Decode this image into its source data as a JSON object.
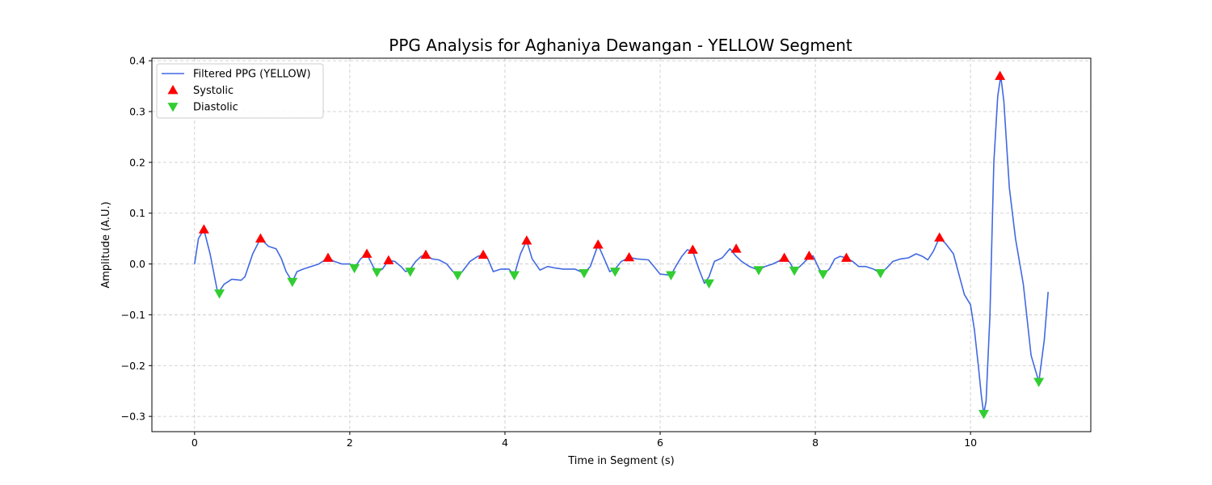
{
  "chart_data": {
    "type": "line",
    "title": "PPG Analysis for Aghaniya Dewangan - YELLOW Segment",
    "xlabel": "Time in Segment (s)",
    "ylabel": "Amplitude (A.U.)",
    "xlim": [
      -0.55,
      11.55
    ],
    "ylim": [
      -0.33,
      0.405
    ],
    "xticks": [
      0,
      2,
      4,
      6,
      8,
      10
    ],
    "yticks": [
      -0.3,
      -0.2,
      -0.1,
      0.0,
      0.1,
      0.2,
      0.3,
      0.4
    ],
    "xtick_labels": [
      "0",
      "2",
      "4",
      "6",
      "8",
      "10"
    ],
    "ytick_labels": [
      "−0.3",
      "−0.2",
      "−0.1",
      "0.0",
      "0.1",
      "0.2",
      "0.3",
      "0.4"
    ],
    "grid": true,
    "legend_position": "top-left",
    "series": [
      {
        "name": "Filtered PPG (YELLOW)",
        "kind": "line",
        "color": "#4169e1",
        "x": [
          0.0,
          0.05,
          0.12,
          0.2,
          0.3,
          0.38,
          0.48,
          0.6,
          0.65,
          0.75,
          0.85,
          0.95,
          1.05,
          1.12,
          1.18,
          1.26,
          1.32,
          1.4,
          1.5,
          1.6,
          1.72,
          1.8,
          1.9,
          2.0,
          2.06,
          2.14,
          2.22,
          2.3,
          2.35,
          2.42,
          2.5,
          2.58,
          2.66,
          2.72,
          2.78,
          2.85,
          2.92,
          2.98,
          3.06,
          3.15,
          3.25,
          3.33,
          3.39,
          3.45,
          3.55,
          3.65,
          3.72,
          3.78,
          3.85,
          3.95,
          4.05,
          4.12,
          4.2,
          4.28,
          4.35,
          4.45,
          4.55,
          4.65,
          4.75,
          4.9,
          5.02,
          5.1,
          5.2,
          5.28,
          5.35,
          5.42,
          5.5,
          5.6,
          5.7,
          5.85,
          6.0,
          6.14,
          6.2,
          6.28,
          6.35,
          6.42,
          6.5,
          6.57,
          6.63,
          6.7,
          6.8,
          6.9,
          6.98,
          7.05,
          7.15,
          7.27,
          7.35,
          7.45,
          7.52,
          7.6,
          7.67,
          7.73,
          7.8,
          7.9,
          7.97,
          8.05,
          8.1,
          8.18,
          8.25,
          8.32,
          8.4,
          8.48,
          8.56,
          8.65,
          8.75,
          8.84,
          8.92,
          9.0,
          9.1,
          9.2,
          9.3,
          9.38,
          9.45,
          9.52,
          9.6,
          9.68,
          9.78,
          9.85,
          9.92,
          10.0,
          10.05,
          10.1,
          10.14,
          10.17,
          10.2,
          10.25,
          10.3,
          10.35,
          10.39,
          10.43,
          10.5,
          10.58,
          10.68,
          10.78,
          10.88,
          10.95,
          11.0
        ],
        "y": [
          0.0,
          0.05,
          0.068,
          0.02,
          -0.058,
          -0.04,
          -0.03,
          -0.032,
          -0.025,
          0.02,
          0.05,
          0.035,
          0.03,
          0.01,
          -0.015,
          -0.035,
          -0.015,
          -0.01,
          -0.005,
          0.0,
          0.012,
          0.005,
          0.0,
          0.0,
          -0.008,
          0.01,
          0.02,
          -0.005,
          -0.016,
          -0.01,
          0.007,
          0.005,
          -0.005,
          -0.015,
          -0.01,
          0.005,
          0.015,
          0.018,
          0.01,
          0.008,
          0.0,
          -0.015,
          -0.022,
          -0.015,
          0.005,
          0.015,
          0.018,
          0.01,
          -0.015,
          -0.01,
          -0.01,
          -0.022,
          0.02,
          0.046,
          0.01,
          -0.012,
          -0.005,
          -0.008,
          -0.01,
          -0.01,
          -0.018,
          -0.005,
          0.038,
          0.01,
          -0.015,
          -0.01,
          0.005,
          0.013,
          0.01,
          0.008,
          -0.02,
          -0.022,
          -0.005,
          0.015,
          0.028,
          0.025,
          -0.01,
          -0.038,
          -0.025,
          0.005,
          0.012,
          0.03,
          0.015,
          0.005,
          -0.005,
          -0.012,
          -0.005,
          0.0,
          0.005,
          0.012,
          0.003,
          -0.013,
          -0.005,
          0.01,
          0.016,
          -0.01,
          -0.02,
          -0.01,
          0.01,
          0.015,
          0.012,
          0.005,
          -0.005,
          -0.005,
          -0.01,
          -0.018,
          -0.008,
          0.005,
          0.01,
          0.012,
          0.02,
          0.015,
          0.008,
          0.025,
          0.052,
          0.04,
          0.02,
          -0.02,
          -0.06,
          -0.08,
          -0.13,
          -0.2,
          -0.26,
          -0.295,
          -0.27,
          -0.1,
          0.2,
          0.33,
          0.37,
          0.32,
          0.15,
          0.05,
          -0.04,
          -0.18,
          -0.232,
          -0.15,
          -0.055
        ]
      },
      {
        "name": "Systolic",
        "kind": "markers",
        "marker": "triangle-up",
        "color": "#ff0000",
        "x": [
          0.12,
          0.85,
          1.72,
          2.22,
          2.5,
          2.98,
          3.72,
          4.28,
          5.2,
          5.6,
          6.42,
          6.98,
          7.6,
          7.92,
          8.4,
          9.6,
          10.38
        ],
        "y": [
          0.068,
          0.05,
          0.012,
          0.02,
          0.007,
          0.018,
          0.018,
          0.046,
          0.038,
          0.013,
          0.028,
          0.03,
          0.012,
          0.016,
          0.012,
          0.052,
          0.37
        ]
      },
      {
        "name": "Diastolic",
        "kind": "markers",
        "marker": "triangle-down",
        "color": "#32cd32",
        "x": [
          0.32,
          1.26,
          2.06,
          2.35,
          2.78,
          3.39,
          4.12,
          5.02,
          5.42,
          6.14,
          6.63,
          7.27,
          7.73,
          8.1,
          8.84,
          10.17,
          10.88
        ],
        "y": [
          -0.058,
          -0.035,
          -0.008,
          -0.016,
          -0.015,
          -0.022,
          -0.022,
          -0.018,
          -0.015,
          -0.022,
          -0.038,
          -0.012,
          -0.013,
          -0.02,
          -0.018,
          -0.295,
          -0.232
        ]
      }
    ]
  }
}
